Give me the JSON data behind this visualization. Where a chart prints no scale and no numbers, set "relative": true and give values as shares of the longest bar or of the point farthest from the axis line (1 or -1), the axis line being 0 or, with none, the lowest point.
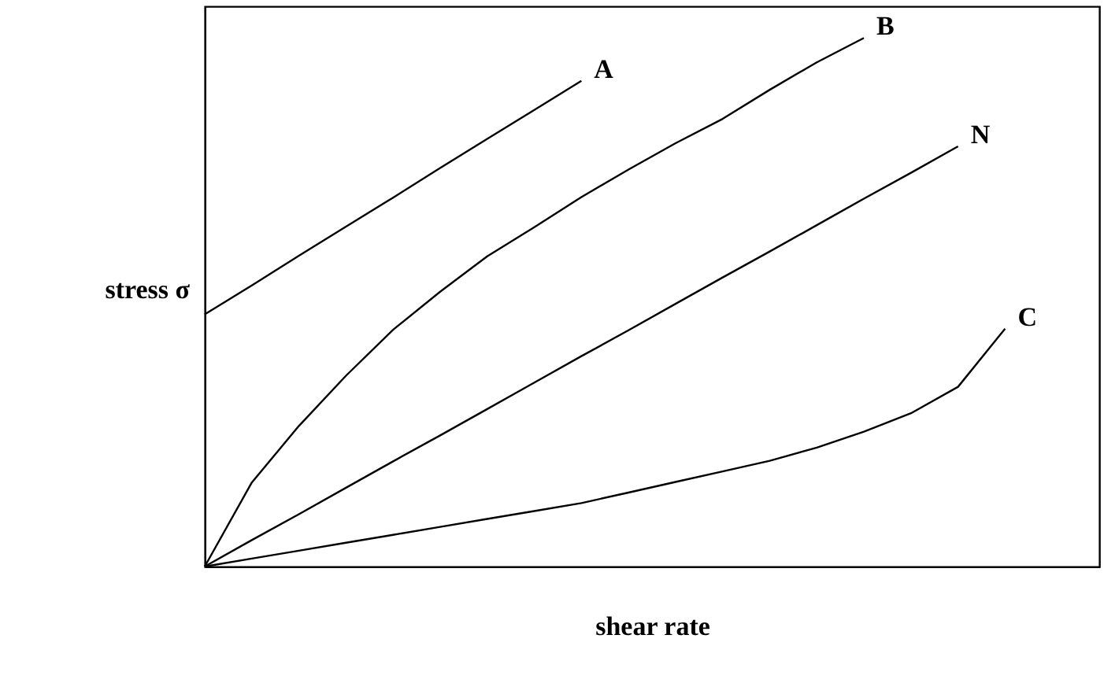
{
  "chart_data": {
    "type": "line",
    "relative": true,
    "xlabel": "shear rate",
    "ylabel": "stress σ",
    "grid": false,
    "marker": "none",
    "line_style": "solid",
    "categories": [
      null,
      null,
      null,
      null,
      null,
      null,
      null,
      null,
      null,
      null,
      null,
      null,
      null,
      null,
      null,
      null,
      null,
      null,
      null,
      null
    ],
    "series": [
      {
        "name": "A",
        "color": "#000000",
        "values": [
          0.477,
          0.532,
          0.588,
          0.643,
          0.698,
          0.754,
          0.809,
          0.864,
          0.919,
          null,
          null,
          null,
          null,
          null,
          null,
          null,
          null,
          null,
          null,
          null
        ]
      },
      {
        "name": "B",
        "color": "#000000",
        "values": [
          0,
          0.159,
          0.266,
          0.361,
          0.448,
          0.52,
          0.587,
          0.642,
          0.699,
          0.751,
          0.801,
          0.847,
          0.902,
          0.954,
          1,
          null,
          null,
          null,
          null,
          null
        ]
      },
      {
        "name": "N",
        "color": "#000000",
        "values": [
          0,
          0.05,
          0.099,
          0.149,
          0.199,
          0.248,
          0.298,
          0.348,
          0.398,
          0.447,
          0.497,
          0.547,
          0.596,
          0.646,
          0.696,
          0.745,
          0.795,
          null,
          null,
          null
        ]
      },
      {
        "name": "C",
        "color": "#000000",
        "values": [
          0,
          0.015,
          0.03,
          0.045,
          0.06,
          0.075,
          0.09,
          0.105,
          0.12,
          0.14,
          0.16,
          0.18,
          0.2,
          0.225,
          0.255,
          0.29,
          0.34,
          0.45,
          null,
          null
        ]
      }
    ]
  }
}
